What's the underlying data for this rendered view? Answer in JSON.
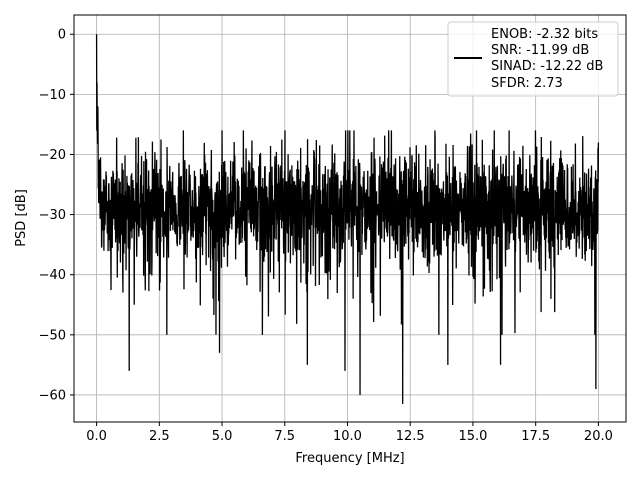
{
  "chart_data": {
    "type": "line",
    "title": "",
    "xlabel": "Frequency [MHz]",
    "ylabel": "PSD [dB]",
    "xlim": [
      -0.9,
      21.1
    ],
    "ylim": [
      -64.5,
      3.2
    ],
    "xticks": [
      0.0,
      2.5,
      5.0,
      7.5,
      10.0,
      12.5,
      15.0,
      17.5,
      20.0
    ],
    "xtick_labels": [
      "0.0",
      "2.5",
      "5.0",
      "7.5",
      "10.0",
      "12.5",
      "15.0",
      "17.5",
      "20.0"
    ],
    "yticks": [
      0,
      -10,
      -20,
      -30,
      -40,
      -50,
      -60
    ],
    "ytick_labels": [
      "0",
      "−10",
      "−20",
      "−30",
      "−40",
      "−50",
      "−60"
    ],
    "grid": true,
    "legend": {
      "position": "top-right",
      "entries": [
        "ENOB: -2.32 bits",
        "SNR: -11.99 dB",
        "SINAD: -12.22 dB",
        "SFDR: 2.73"
      ]
    },
    "series": [
      {
        "color": "#000000",
        "x_start": 0.0,
        "x_end": 20.0,
        "y_range": [
          -61.5,
          0.0
        ],
        "description": "dense noise floor, peak 0 dB at DC, mostly between -18 and -42 dB",
        "spikes": [
          {
            "x": 0.0,
            "y": 0.0
          },
          {
            "x": 0.02,
            "y": -8.0
          },
          {
            "x": 0.05,
            "y": -12.0
          },
          {
            "x": 0.1,
            "y": -21.0
          },
          {
            "x": 1.3,
            "y": -56.0
          },
          {
            "x": 1.5,
            "y": -45.0
          },
          {
            "x": 2.8,
            "y": -50.0
          },
          {
            "x": 4.9,
            "y": -53.0
          },
          {
            "x": 5.0,
            "y": -16.0
          },
          {
            "x": 8.4,
            "y": -55.0
          },
          {
            "x": 9.9,
            "y": -56.0
          },
          {
            "x": 10.5,
            "y": -60.0
          },
          {
            "x": 12.2,
            "y": -61.5
          },
          {
            "x": 14.0,
            "y": -55.0
          },
          {
            "x": 16.1,
            "y": -55.0
          },
          {
            "x": 19.9,
            "y": -59.0
          },
          {
            "x": 20.0,
            "y": -18.0
          }
        ]
      }
    ]
  }
}
